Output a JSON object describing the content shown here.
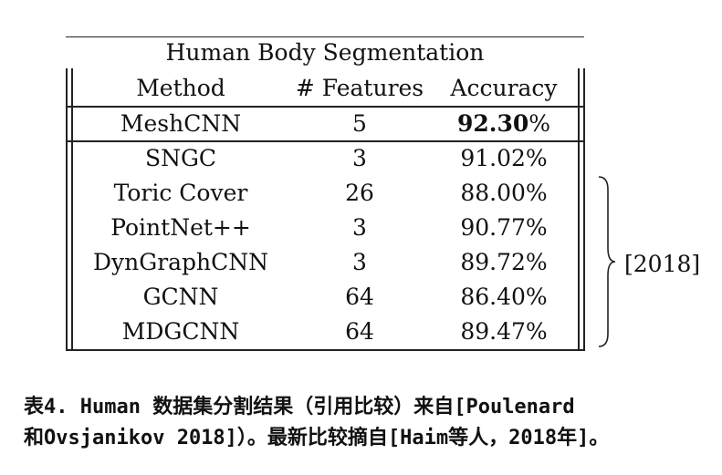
{
  "table": {
    "title": "Human Body Segmentation",
    "headers": [
      "Method",
      "# Features",
      "Accuracy"
    ],
    "rows": [
      {
        "method": "MeshCNN",
        "features": "5",
        "acc_value": "92.30",
        "acc_unit": "%",
        "best": true
      },
      {
        "method": "SNGC",
        "features": "3",
        "acc_value": "91.02",
        "acc_unit": "%"
      },
      {
        "method": "Toric Cover",
        "features": "26",
        "acc_value": "88.00",
        "acc_unit": "%"
      },
      {
        "method": "PointNet++",
        "features": "3",
        "acc_value": "90.77",
        "acc_unit": "%"
      },
      {
        "method": "DynGraphCNN",
        "features": "3",
        "acc_value": "89.72",
        "acc_unit": "%"
      },
      {
        "method": "GCNN",
        "features": "64",
        "acc_value": "86.40",
        "acc_unit": "%"
      },
      {
        "method": "MDGCNN",
        "features": "64",
        "acc_value": "89.47",
        "acc_unit": "%"
      }
    ],
    "brace_label": "[2018]"
  },
  "caption": {
    "line1": "表4. Human 数据集分割结果（引用比较）来自[Poulenard",
    "line2": "和Ovsjanikov 2018]）。最新比较摘自[Haim等人，2018年]。"
  }
}
